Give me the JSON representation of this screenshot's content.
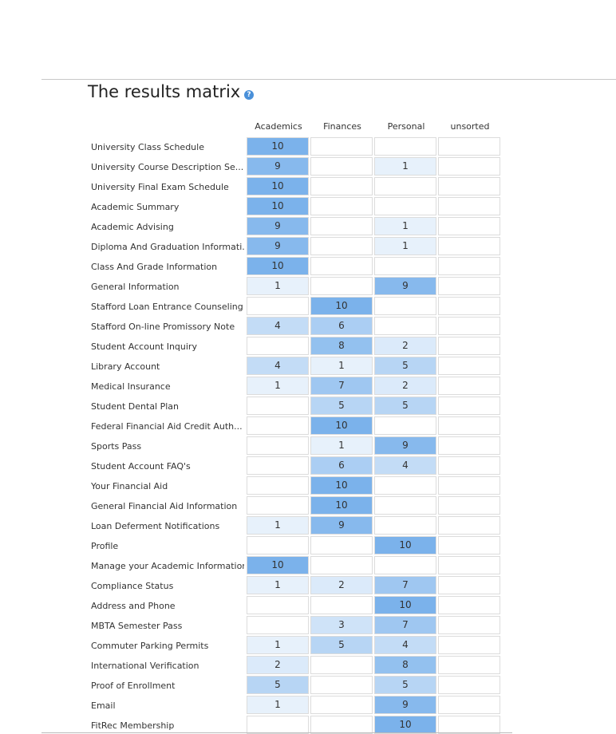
{
  "header": {
    "title": "The results matrix"
  },
  "table": {
    "columns": [
      "Academics",
      "Finances",
      "Personal",
      "unsorted"
    ],
    "rows": [
      {
        "label": "University Class Schedule",
        "cells": [
          10,
          null,
          null,
          null
        ]
      },
      {
        "label": "University Course Description Se...",
        "cells": [
          9,
          null,
          1,
          null
        ]
      },
      {
        "label": "University Final Exam Schedule",
        "cells": [
          10,
          null,
          null,
          null
        ]
      },
      {
        "label": "Academic Summary",
        "cells": [
          10,
          null,
          null,
          null
        ]
      },
      {
        "label": "Academic Advising",
        "cells": [
          9,
          null,
          1,
          null
        ]
      },
      {
        "label": "Diploma And Graduation Informati...",
        "cells": [
          9,
          null,
          1,
          null
        ]
      },
      {
        "label": "Class And Grade Information",
        "cells": [
          10,
          null,
          null,
          null
        ]
      },
      {
        "label": "General Information",
        "cells": [
          1,
          null,
          9,
          null
        ]
      },
      {
        "label": "Stafford Loan Entrance Counseling",
        "cells": [
          null,
          10,
          null,
          null
        ]
      },
      {
        "label": "Stafford On-line Promissory Note",
        "cells": [
          4,
          6,
          null,
          null
        ]
      },
      {
        "label": "Student Account Inquiry",
        "cells": [
          null,
          8,
          2,
          null
        ]
      },
      {
        "label": "Library Account",
        "cells": [
          4,
          1,
          5,
          null
        ]
      },
      {
        "label": "Medical Insurance",
        "cells": [
          1,
          7,
          2,
          null
        ]
      },
      {
        "label": "Student Dental Plan",
        "cells": [
          null,
          5,
          5,
          null
        ]
      },
      {
        "label": "Federal Financial Aid Credit Auth...",
        "cells": [
          null,
          10,
          null,
          null
        ]
      },
      {
        "label": "Sports Pass",
        "cells": [
          null,
          1,
          9,
          null
        ]
      },
      {
        "label": "Student Account FAQ's",
        "cells": [
          null,
          6,
          4,
          null
        ]
      },
      {
        "label": "Your Financial Aid",
        "cells": [
          null,
          10,
          null,
          null
        ]
      },
      {
        "label": "General Financial Aid Information",
        "cells": [
          null,
          10,
          null,
          null
        ]
      },
      {
        "label": "Loan Deferment Notifications",
        "cells": [
          1,
          9,
          null,
          null
        ]
      },
      {
        "label": "Profile",
        "cells": [
          null,
          null,
          10,
          null
        ]
      },
      {
        "label": "Manage your Academic Information",
        "cells": [
          10,
          null,
          null,
          null
        ]
      },
      {
        "label": "Compliance Status",
        "cells": [
          1,
          2,
          7,
          null
        ]
      },
      {
        "label": "Address and Phone",
        "cells": [
          null,
          null,
          10,
          null
        ]
      },
      {
        "label": "MBTA Semester Pass",
        "cells": [
          null,
          3,
          7,
          null
        ]
      },
      {
        "label": "Commuter Parking Permits",
        "cells": [
          1,
          5,
          4,
          null
        ]
      },
      {
        "label": "International Verification",
        "cells": [
          2,
          null,
          8,
          null
        ]
      },
      {
        "label": "Proof of Enrollment",
        "cells": [
          5,
          null,
          5,
          null
        ]
      },
      {
        "label": "Email",
        "cells": [
          1,
          null,
          9,
          null
        ]
      },
      {
        "label": "FitRec Membership",
        "cells": [
          null,
          null,
          10,
          null
        ]
      }
    ]
  }
}
